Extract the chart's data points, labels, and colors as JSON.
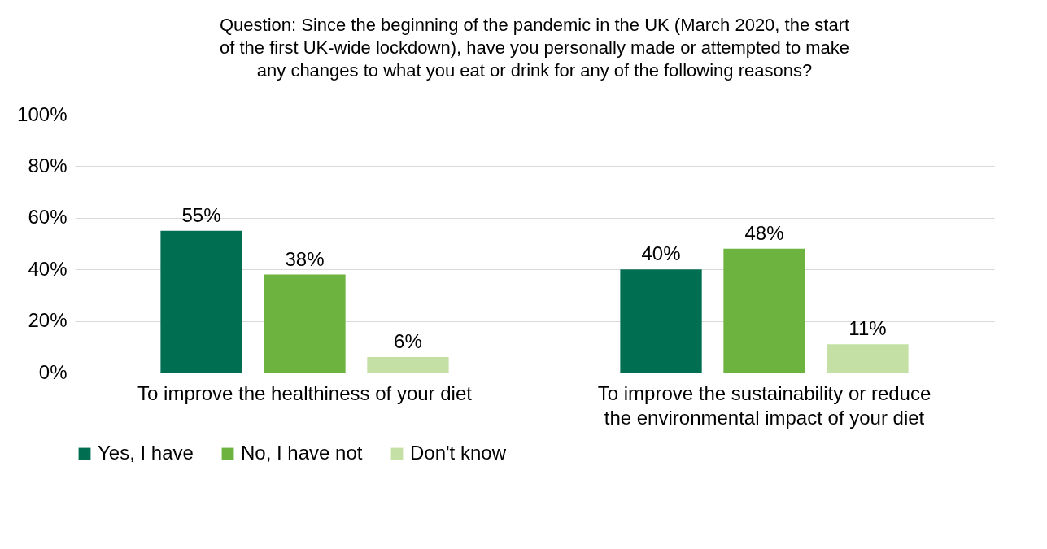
{
  "chart_data": {
    "type": "bar",
    "title": "Question: Since the beginning of the pandemic in the UK (March 2020, the start of the first UK-wide lockdown), have you personally made or attempted to make any changes to what you eat or drink for any of the following reasons?",
    "categories": [
      "To improve the healthiness of your diet",
      "To improve the sustainability or reduce the environmental impact of your diet"
    ],
    "series": [
      {
        "name": "Yes, I have",
        "color": "#006f51",
        "values": [
          55,
          40
        ]
      },
      {
        "name": "No, I have not",
        "color": "#6db33f",
        "values": [
          38,
          48
        ]
      },
      {
        "name": "Don't know",
        "color": "#c5e0a5",
        "values": [
          6,
          11
        ]
      }
    ],
    "ylim": [
      0,
      100
    ],
    "yticks": [
      {
        "value": 0,
        "label": "0%"
      },
      {
        "value": 20,
        "label": "20%"
      },
      {
        "value": 40,
        "label": "40%"
      },
      {
        "value": 60,
        "label": "60%"
      },
      {
        "value": 80,
        "label": "80%"
      },
      {
        "value": 100,
        "label": "100%"
      }
    ],
    "value_labels": [
      [
        "55%",
        "40%"
      ],
      [
        "38%",
        "48%"
      ],
      [
        "6%",
        "11%"
      ]
    ],
    "grid": "y",
    "legend": "bottom"
  }
}
